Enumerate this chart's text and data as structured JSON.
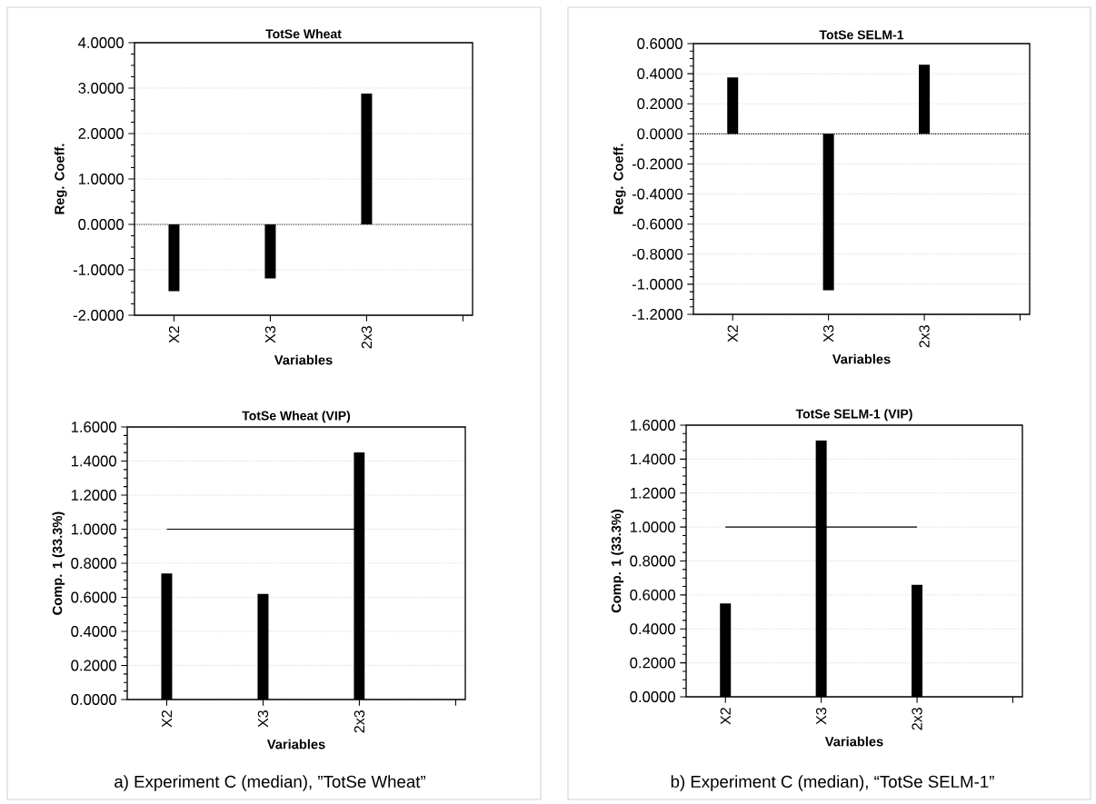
{
  "chart_data": [
    {
      "type": "bar",
      "title": "TotSe Wheat",
      "xlabel": "Variables",
      "ylabel": "Reg. Coeff.",
      "categories": [
        "X2",
        "X3",
        "2x3",
        null
      ],
      "values": [
        -1.47,
        -1.19,
        2.88,
        null
      ],
      "color": "#000000",
      "ylim": [
        -2,
        4
      ],
      "yticks": [
        {
          "value": -2,
          "label": "-2.0000"
        },
        {
          "value": -1,
          "label": "-1.0000"
        },
        {
          "value": 0,
          "label": "0.0000"
        },
        {
          "value": 1,
          "label": "1.0000"
        },
        {
          "value": 2,
          "label": "2.0000"
        },
        {
          "value": 3,
          "label": "3.0000"
        },
        {
          "value": 4,
          "label": "4.0000"
        }
      ],
      "grid": "y",
      "ref_lines": [
        {
          "axis": "y",
          "value": 0,
          "line_style": "dotted",
          "color": "#000000"
        }
      ]
    },
    {
      "type": "bar",
      "title": "TotSe SELM-1",
      "xlabel": "Variables",
      "ylabel": "Reg. Coeff.",
      "categories": [
        "X2",
        "X3",
        "2x3",
        null
      ],
      "values": [
        0.375,
        -1.04,
        0.46,
        null
      ],
      "color": "#000000",
      "ylim": [
        -1.2,
        0.6
      ],
      "yticks": [
        {
          "value": -1.2,
          "label": "-1.2000"
        },
        {
          "value": -1,
          "label": "-1.0000"
        },
        {
          "value": -0.8,
          "label": "-0.8000"
        },
        {
          "value": -0.6,
          "label": "-0.6000"
        },
        {
          "value": -0.4,
          "label": "-0.4000"
        },
        {
          "value": -0.2,
          "label": "-0.2000"
        },
        {
          "value": 0,
          "label": "0.0000"
        },
        {
          "value": 0.2,
          "label": "0.2000"
        },
        {
          "value": 0.4,
          "label": "0.4000"
        },
        {
          "value": 0.6,
          "label": "0.6000"
        }
      ],
      "grid": "y",
      "ref_lines": [
        {
          "axis": "y",
          "value": 0,
          "line_style": "dotted",
          "color": "#000000"
        }
      ]
    },
    {
      "type": "bar",
      "title": "TotSe Wheat (VIP)",
      "xlabel": "Variables",
      "ylabel": "Comp. 1 (33.3%)",
      "categories": [
        "X2",
        "X3",
        "2x3",
        null
      ],
      "values": [
        0.74,
        0.62,
        1.45,
        null
      ],
      "color": "#000000",
      "ylim": [
        0,
        1.6
      ],
      "yticks": [
        {
          "value": 0,
          "label": "0.0000"
        },
        {
          "value": 0.2,
          "label": "0.2000"
        },
        {
          "value": 0.4,
          "label": "0.4000"
        },
        {
          "value": 0.6,
          "label": "0.6000"
        },
        {
          "value": 0.8,
          "label": "0.8000"
        },
        {
          "value": 1,
          "label": "1.0000"
        },
        {
          "value": 1.2,
          "label": "1.2000"
        },
        {
          "value": 1.4,
          "label": "1.4000"
        },
        {
          "value": 1.6,
          "label": "1.6000"
        }
      ],
      "grid": "y",
      "ref_lines": [
        {
          "axis": "y",
          "value": 1,
          "line_style": "solid",
          "color": "#000000"
        }
      ],
      "annotations": [
        "a) Experiment C (median), ”TotSe Wheat”"
      ]
    },
    {
      "type": "bar",
      "title": "TotSe SELM-1 (VIP)",
      "xlabel": "Variables",
      "ylabel": "Comp. 1 (33.3%)",
      "categories": [
        "X2",
        "X3",
        "2x3",
        null
      ],
      "values": [
        0.55,
        1.51,
        0.66,
        null
      ],
      "color": "#000000",
      "ylim": [
        0,
        1.6
      ],
      "yticks": [
        {
          "value": 0,
          "label": "0.0000"
        },
        {
          "value": 0.2,
          "label": "0.2000"
        },
        {
          "value": 0.4,
          "label": "0.4000"
        },
        {
          "value": 0.6,
          "label": "0.6000"
        },
        {
          "value": 0.8,
          "label": "0.8000"
        },
        {
          "value": 1,
          "label": "1.0000"
        },
        {
          "value": 1.2,
          "label": "1.2000"
        },
        {
          "value": 1.4,
          "label": "1.4000"
        },
        {
          "value": 1.6,
          "label": "1.6000"
        }
      ],
      "grid": "y",
      "ref_lines": [
        {
          "axis": "y",
          "value": 1,
          "line_style": "solid",
          "color": "#000000"
        }
      ],
      "annotations": [
        "b) Experiment C (median), “TotSe SELM-1”"
      ]
    }
  ]
}
